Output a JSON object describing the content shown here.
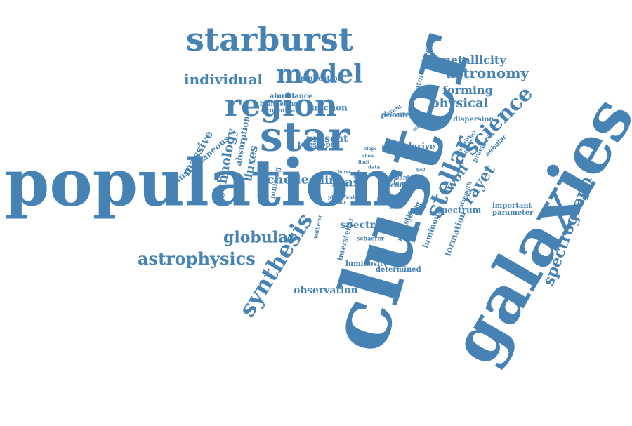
{
  "color": "#4682b4",
  "words": [
    "population",
    "cluster",
    "galaxies",
    "star",
    "region",
    "model",
    "starburst",
    "spectrograph",
    "synthesis",
    "stellar",
    "astrophysics",
    "globular",
    "science",
    "individual",
    "astronomy",
    "metallicity",
    "forming",
    "physical",
    "echelle",
    "technology",
    "fluxes",
    "massive",
    "rayet",
    "wolf",
    "mas",
    "present",
    "line",
    "spectra",
    "spectrum",
    "observation",
    "formation",
    "instantaneous",
    "function",
    "absorption",
    "type",
    "derive",
    "ratio",
    "code",
    "luminous",
    "important",
    "parameter",
    "atmosphere",
    "implication",
    "abundance",
    "blanketing",
    "dynamical",
    "dispersion",
    "doomed",
    "telescope",
    "ionizing",
    "interstellar",
    "luminosity",
    "determined",
    "realistic",
    "young",
    "schaerer",
    "giant",
    "lower",
    "strength",
    "previous",
    "nebular",
    "current",
    "spectral",
    "herschel",
    "feature",
    "phase",
    "velocity",
    "similar",
    "heavy",
    "effect",
    "data",
    "leitherer",
    "age",
    "slope",
    "show",
    "basic",
    "limit",
    "burst",
    "higher",
    "gap"
  ]
}
